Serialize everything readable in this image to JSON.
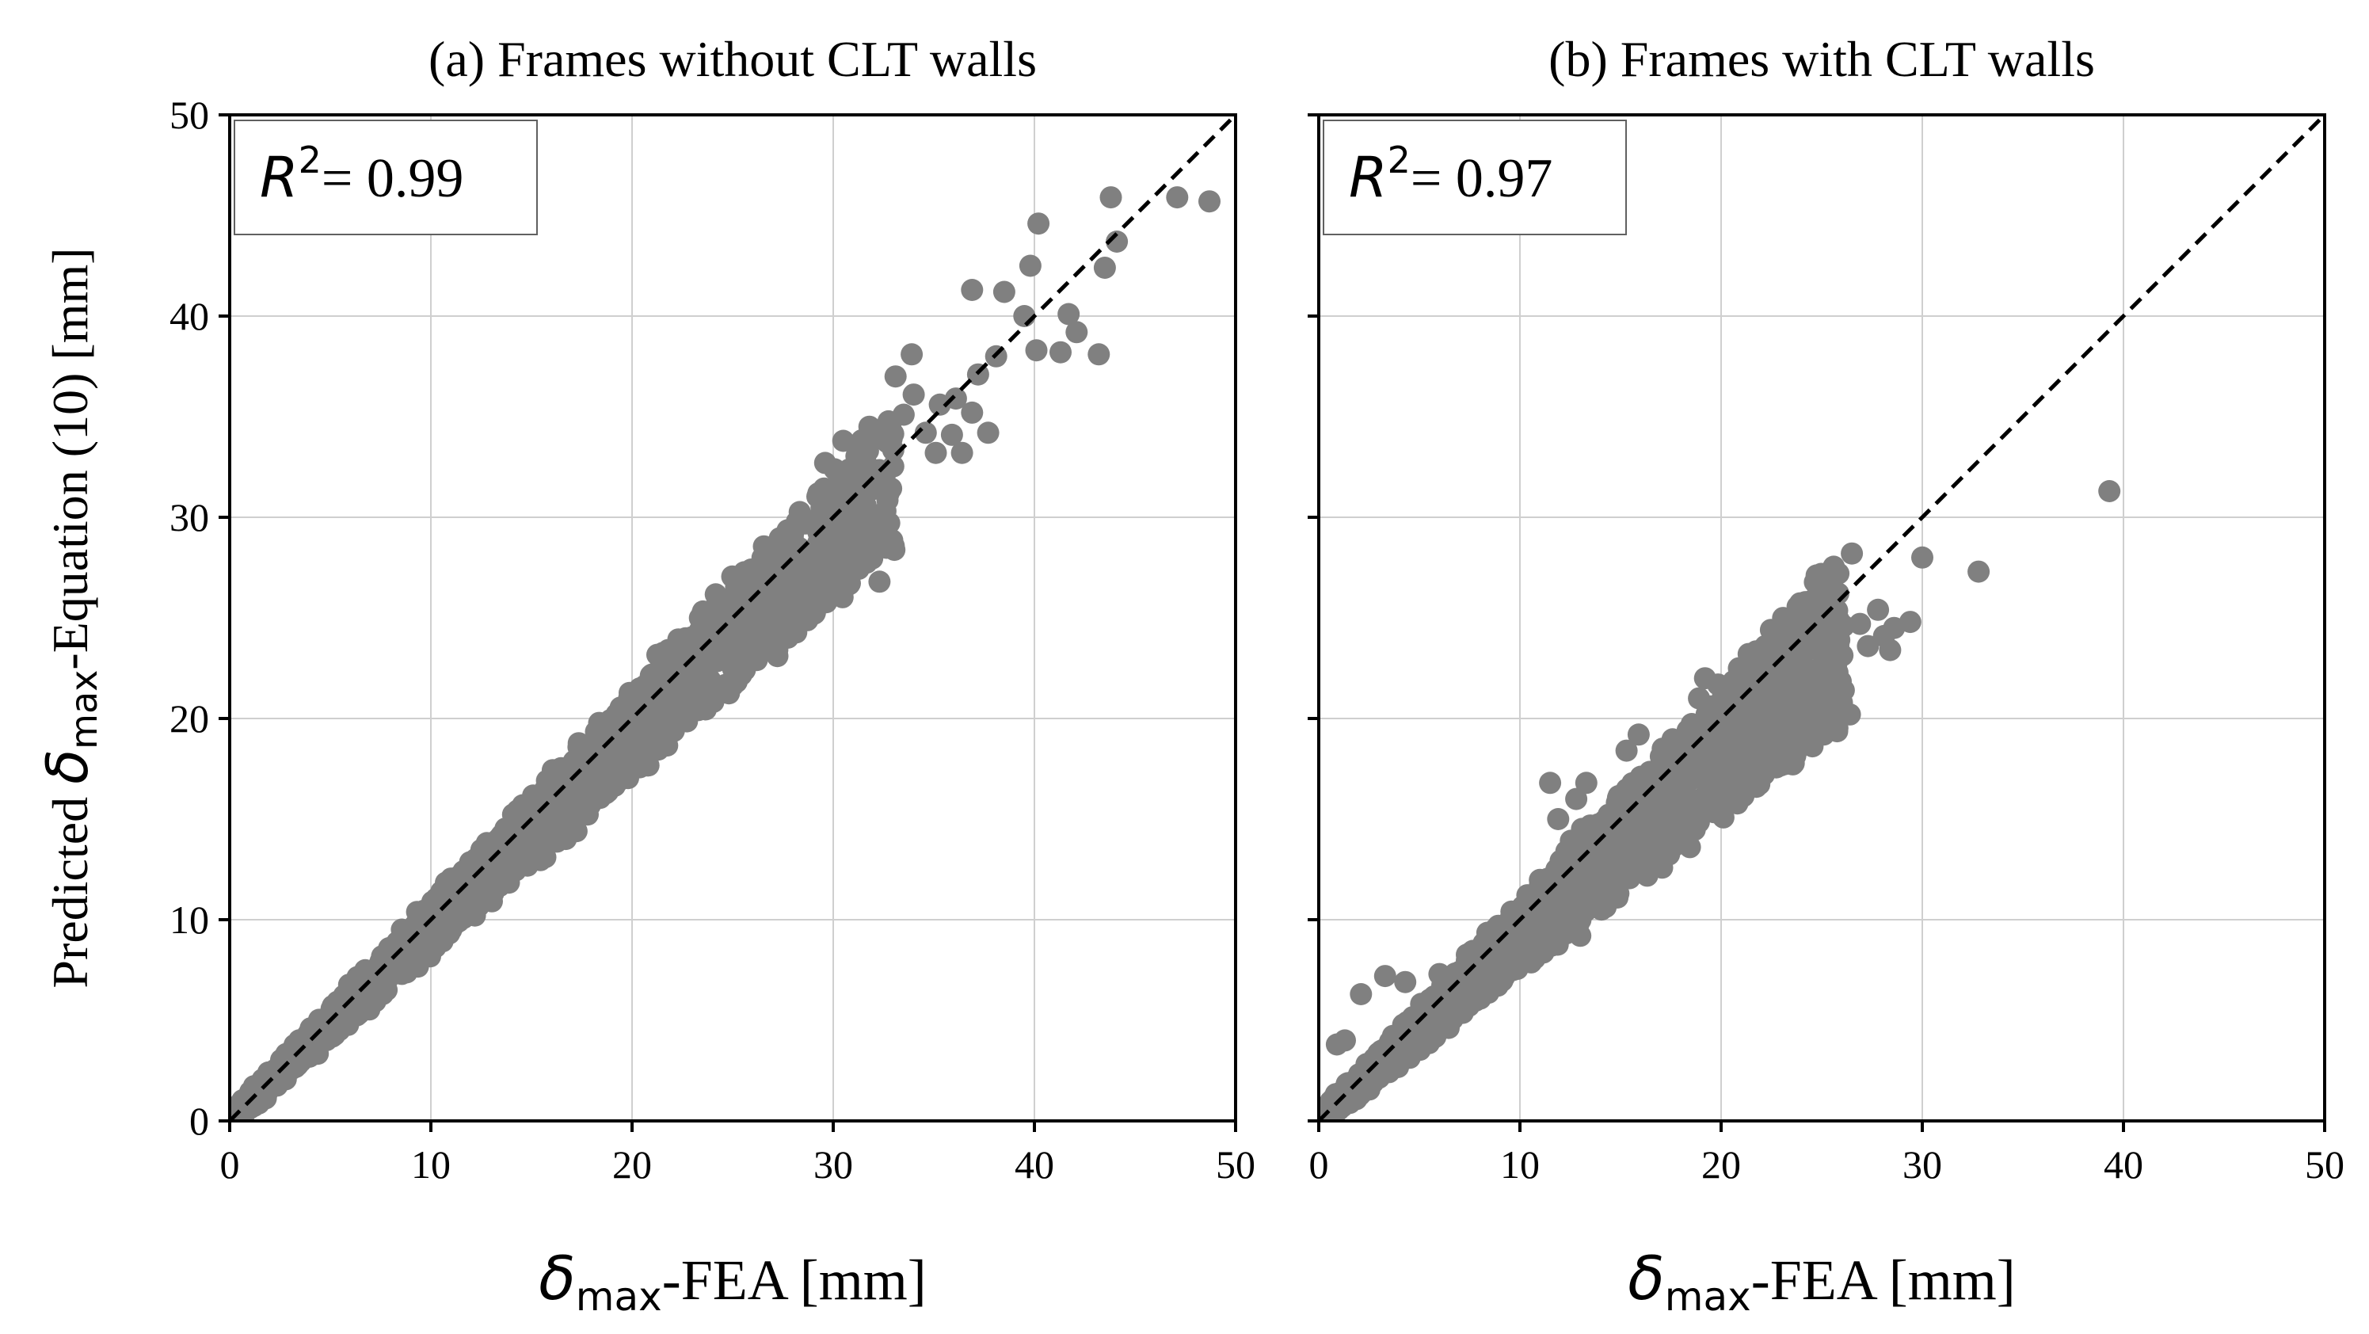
{
  "figure": {
    "y_label_prefix": "Predicted ",
    "y_label_symbol": "δ",
    "y_label_sub": "max",
    "y_label_suffix": "-Equation (10) [mm]"
  },
  "chart_data": [
    {
      "type": "scatter",
      "title": "(a) Frames without CLT walls",
      "xlabel_symbol": "δ",
      "xlabel_sub": "max",
      "xlabel_suffix": "-FEA [mm]",
      "ylabel": "Predicted δmax-Equation (10) [mm]",
      "xlim": [
        0,
        50
      ],
      "ylim": [
        0,
        50
      ],
      "xticks": [
        0,
        10,
        20,
        30,
        40,
        50
      ],
      "yticks": [
        0,
        10,
        20,
        30,
        40,
        50
      ],
      "grid": true,
      "r2_label": "R",
      "r2_exp": "2",
      "r2_value": "= 0.99",
      "reference_line": {
        "style": "dashed",
        "from": [
          0,
          0
        ],
        "to": [
          50,
          50
        ]
      },
      "point_color": "#808080",
      "dense_band": {
        "x_max": 33,
        "slope_low": 0.86,
        "slope_high": 1.07,
        "density": 1700
      },
      "outliers": [
        [
          48.7,
          45.7
        ],
        [
          47.1,
          45.9
        ],
        [
          43.8,
          45.9
        ],
        [
          44.1,
          43.7
        ],
        [
          43.5,
          42.4
        ],
        [
          40.2,
          44.6
        ],
        [
          39.8,
          42.5
        ],
        [
          38.5,
          41.2
        ],
        [
          36.9,
          41.3
        ],
        [
          40.1,
          38.3
        ],
        [
          41.3,
          38.2
        ],
        [
          42.1,
          39.2
        ],
        [
          43.2,
          38.1
        ],
        [
          41.7,
          40.1
        ],
        [
          38.1,
          38.0
        ],
        [
          37.7,
          34.2
        ],
        [
          36.9,
          35.2
        ],
        [
          36.4,
          33.2
        ],
        [
          35.9,
          34.1
        ],
        [
          35.1,
          33.2
        ],
        [
          34.6,
          34.2
        ],
        [
          33.9,
          38.1
        ],
        [
          33.1,
          37.0
        ],
        [
          34.0,
          36.1
        ],
        [
          35.3,
          35.6
        ],
        [
          36.1,
          35.9
        ],
        [
          39.5,
          40.0
        ],
        [
          32.3,
          26.8
        ],
        [
          30.5,
          33.8
        ],
        [
          31.8,
          34.5
        ],
        [
          32.9,
          33.9
        ],
        [
          37.2,
          37.1
        ],
        [
          33.5,
          35.1
        ],
        [
          29.6,
          32.7
        ],
        [
          31.0,
          31.8
        ]
      ]
    },
    {
      "type": "scatter",
      "title": "(b) Frames with CLT walls",
      "xlabel_symbol": "δ",
      "xlabel_sub": "max",
      "xlabel_suffix": "-FEA [mm]",
      "ylabel": "Predicted δmax-Equation (10) [mm]",
      "xlim": [
        0,
        50
      ],
      "ylim": [
        0,
        50
      ],
      "xticks": [
        0,
        10,
        20,
        30,
        40,
        50
      ],
      "yticks": [
        0,
        10,
        20,
        30,
        40,
        50
      ],
      "grid": true,
      "r2_label": "R",
      "r2_exp": "2",
      "r2_value": "= 0.97",
      "reference_line": {
        "style": "dashed",
        "from": [
          0,
          0
        ],
        "to": [
          50,
          50
        ]
      },
      "point_color": "#808080",
      "dense_band": {
        "x_max": 26,
        "slope_low": 0.76,
        "slope_high": 1.08,
        "density": 1500
      },
      "outliers": [
        [
          39.3,
          31.3
        ],
        [
          32.8,
          27.3
        ],
        [
          30.0,
          28.0
        ],
        [
          29.4,
          24.8
        ],
        [
          28.6,
          24.5
        ],
        [
          26.5,
          28.2
        ],
        [
          27.8,
          25.4
        ],
        [
          28.1,
          24.1
        ],
        [
          26.9,
          24.7
        ],
        [
          26.1,
          24.6
        ],
        [
          27.3,
          23.6
        ],
        [
          28.4,
          23.4
        ],
        [
          23.6,
          23.6
        ],
        [
          24.9,
          22.5
        ],
        [
          25.6,
          21.9
        ],
        [
          25.3,
          21.0
        ],
        [
          26.1,
          21.4
        ],
        [
          22.2,
          23.6
        ],
        [
          20.9,
          21.6
        ],
        [
          23.5,
          23.0
        ],
        [
          24.2,
          22.1
        ],
        [
          22.8,
          21.8
        ],
        [
          15.9,
          19.2
        ],
        [
          15.3,
          18.4
        ],
        [
          11.5,
          16.8
        ],
        [
          11.9,
          15.0
        ],
        [
          12.8,
          16.0
        ],
        [
          13.3,
          16.8
        ],
        [
          17.1,
          18.5
        ],
        [
          18.9,
          21.0
        ],
        [
          19.2,
          22.0
        ],
        [
          20.1,
          20.6
        ],
        [
          23.7,
          19.8
        ],
        [
          26.4,
          20.2
        ],
        [
          25.1,
          19.2
        ],
        [
          21.4,
          17.3
        ],
        [
          18.2,
          15.4
        ],
        [
          15.5,
          13.0
        ],
        [
          13.1,
          11.1
        ],
        [
          13.0,
          9.2
        ],
        [
          6.0,
          7.3
        ],
        [
          4.3,
          6.9
        ],
        [
          3.3,
          7.2
        ],
        [
          2.1,
          6.3
        ],
        [
          1.3,
          4.0
        ],
        [
          0.9,
          3.8
        ]
      ]
    }
  ]
}
